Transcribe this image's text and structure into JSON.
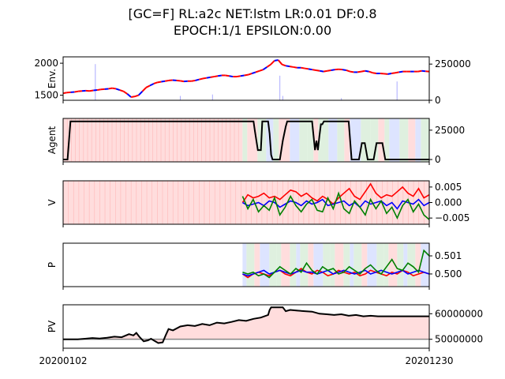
{
  "title_line1": "[GC=F] RL:a2c NET:lstm LR:0.01 DF:0.8",
  "title_line2": "EPOCH:1/1 EPSILON:0.00",
  "colors": {
    "buy": "#ff0000",
    "sell": "#0000ff",
    "hold": "#008000",
    "pv": "#000000",
    "bg_buy": "#ffdddd",
    "bg_sell": "#dde4ff",
    "bg_hold": "#dff0df",
    "baseline": "#888888"
  },
  "x_tick_labels": [
    "20200102",
    "20201230"
  ],
  "chart_data": [
    {
      "type": "line",
      "name_panel": "env",
      "ylabel": "Env.",
      "y_ticks_left": [
        "2000",
        "1500"
      ],
      "y_ticks_right": [
        "250000",
        "0"
      ],
      "ylim": [
        1420,
        2100
      ],
      "ylim_right": [
        0,
        300000
      ],
      "x_range": [
        0,
        250
      ],
      "price": [
        1530,
        1540,
        1545,
        1550,
        1560,
        1565,
        1570,
        1565,
        1575,
        1580,
        1590,
        1595,
        1600,
        1610,
        1600,
        1580,
        1560,
        1520,
        1470,
        1480,
        1500,
        1560,
        1620,
        1650,
        1680,
        1700,
        1710,
        1720,
        1730,
        1735,
        1730,
        1725,
        1715,
        1720,
        1720,
        1730,
        1745,
        1760,
        1770,
        1780,
        1790,
        1800,
        1810,
        1810,
        1800,
        1790,
        1790,
        1800,
        1810,
        1820,
        1840,
        1860,
        1880,
        1900,
        1940,
        1980,
        2040,
        2050,
        1980,
        1960,
        1950,
        1940,
        1930,
        1930,
        1920,
        1910,
        1900,
        1890,
        1880,
        1870,
        1880,
        1890,
        1900,
        1905,
        1900,
        1890,
        1870,
        1860,
        1860,
        1870,
        1880,
        1870,
        1850,
        1840,
        1840,
        1835,
        1830,
        1840,
        1850,
        1860,
        1870,
        1870,
        1870,
        1870,
        1870,
        1880,
        1875,
        1870
      ],
      "volume_spikes": [
        [
          22,
          250000
        ],
        [
          80,
          30000
        ],
        [
          102,
          40000
        ],
        [
          148,
          170000
        ],
        [
          150,
          30000
        ],
        [
          190,
          15000
        ],
        [
          228,
          130000
        ]
      ]
    },
    {
      "type": "line",
      "name_panel": "agent",
      "ylabel": "Agent",
      "y_ticks": [
        "25000",
        "0"
      ],
      "ylim": [
        -2000,
        35000
      ],
      "x": [
        0,
        3,
        5,
        130,
        131,
        133,
        135,
        136,
        138,
        140,
        141,
        142,
        143,
        144,
        145,
        146,
        148,
        150,
        152,
        153,
        156,
        158,
        170,
        172,
        173,
        174,
        175,
        176,
        177,
        178,
        180,
        182,
        195,
        197,
        200,
        202,
        204,
        206,
        208,
        210,
        212,
        214,
        218,
        220,
        250
      ],
      "values": [
        0,
        0,
        32500,
        32500,
        24000,
        8000,
        8000,
        32500,
        32500,
        32500,
        22000,
        4000,
        0,
        0,
        0,
        0,
        0,
        16000,
        28000,
        32500,
        32500,
        32500,
        32500,
        8000,
        16000,
        8000,
        20000,
        30000,
        30000,
        32500,
        32500,
        32500,
        32500,
        0,
        0,
        0,
        14000,
        14000,
        0,
        0,
        0,
        14000,
        14000,
        0,
        0
      ]
    },
    {
      "type": "line",
      "name_panel": "value",
      "ylabel": "V",
      "y_ticks": [
        "0.005",
        "0.000",
        "−0.005"
      ],
      "ylim": [
        -0.007,
        0.007
      ],
      "series": [
        {
          "key": "buy",
          "values": [
            0.0,
            0.0025,
            0.0015,
            0.002,
            0.003,
            0.0015,
            0.002,
            0.001,
            0.0025,
            0.004,
            0.0035,
            0.002,
            0.003,
            0.0015,
            0.0005,
            0.002,
            0.001,
            -0.0005,
            0.0015,
            0.003,
            0.0045,
            0.002,
            0.001,
            0.0035,
            0.006,
            0.003,
            0.0015,
            0.0025,
            0.002,
            0.0035,
            0.005,
            0.003,
            0.002,
            0.0045,
            0.0015,
            0.0025
          ]
        },
        {
          "key": "sell",
          "values": [
            0.0,
            -0.001,
            -0.0005,
            0.0,
            -0.001,
            0.0005,
            0.0,
            -0.0015,
            -0.0005,
            0.0005,
            0.0,
            -0.001,
            0.0005,
            -0.0005,
            0.0,
            0.001,
            -0.001,
            -0.0005,
            0.0,
            0.0005,
            -0.001,
            0.0,
            -0.0015,
            0.0005,
            -0.0005,
            0.0,
            0.0005,
            -0.001,
            0.0,
            -0.002,
            0.0005,
            0.0,
            -0.0005,
            0.001,
            -0.001,
            0.0
          ]
        },
        {
          "key": "hold",
          "values": [
            0.002,
            -0.002,
            0.001,
            -0.003,
            -0.001,
            -0.0025,
            0.0015,
            -0.004,
            -0.0015,
            0.002,
            -0.001,
            -0.003,
            -0.0005,
            0.001,
            -0.0025,
            -0.003,
            0.0015,
            -0.002,
            0.003,
            -0.002,
            -0.0035,
            0.0005,
            -0.0015,
            -0.004,
            0.001,
            -0.002,
            0.0005,
            -0.0035,
            -0.0015,
            -0.005,
            -0.001,
            0.001,
            -0.003,
            -0.0005,
            -0.004,
            -0.0055
          ]
        }
      ]
    },
    {
      "type": "line",
      "name_panel": "policy",
      "ylabel": "P",
      "y_ticks": [
        "0.501",
        "0.500"
      ],
      "ylim": [
        0.4993,
        0.5017
      ],
      "series": [
        {
          "key": "buy",
          "values": [
            0.5,
            0.4998,
            0.5,
            0.5001,
            0.5,
            0.4999,
            0.5001,
            0.5002,
            0.5,
            0.4999,
            0.5001,
            0.5003,
            0.5001,
            0.5,
            0.5002,
            0.5001,
            0.4999,
            0.5,
            0.5002,
            0.5001,
            0.5,
            0.5001,
            0.4999,
            0.5,
            0.5002,
            0.5001,
            0.5,
            0.4999,
            0.5001,
            0.5,
            0.5002,
            0.5001,
            0.4999,
            0.5,
            0.5001,
            0.5
          ]
        },
        {
          "key": "sell",
          "values": [
            0.5,
            0.4999,
            0.5,
            0.5001,
            0.5002,
            0.5,
            0.5001,
            0.5002,
            0.5001,
            0.5,
            0.5001,
            0.5002,
            0.5001,
            0.5001,
            0.5,
            0.5001,
            0.5002,
            0.5,
            0.5001,
            0.5002,
            0.5001,
            0.5,
            0.5001,
            0.5002,
            0.5,
            0.5001,
            0.5002,
            0.5001,
            0.5,
            0.5001,
            0.5002,
            0.5,
            0.5001,
            0.5002,
            0.5001,
            0.5
          ]
        },
        {
          "key": "hold",
          "values": [
            0.5001,
            0.5,
            0.5001,
            0.4999,
            0.5,
            0.4998,
            0.5001,
            0.5004,
            0.5002,
            0.5,
            0.5003,
            0.5001,
            0.5006,
            0.5002,
            0.5,
            0.5004,
            0.5002,
            0.5003,
            0.5,
            0.5001,
            0.5004,
            0.5002,
            0.5,
            0.5003,
            0.5005,
            0.5002,
            0.5,
            0.5004,
            0.5008,
            0.5003,
            0.5002,
            0.5006,
            0.5004,
            0.5001,
            0.5013,
            0.501
          ]
        }
      ]
    },
    {
      "type": "area",
      "name_panel": "pv",
      "ylabel": "PV",
      "y_ticks": [
        "60000000",
        "50000000"
      ],
      "ylim": [
        46500000,
        63500000
      ],
      "baseline_value": 50000000,
      "x": [
        0,
        10,
        15,
        20,
        25,
        30,
        35,
        40,
        45,
        48,
        50,
        52,
        55,
        58,
        60,
        62,
        65,
        68,
        70,
        72,
        75,
        80,
        85,
        90,
        95,
        100,
        105,
        110,
        115,
        120,
        125,
        130,
        135,
        140,
        141,
        142,
        145,
        150,
        152,
        155,
        160,
        165,
        170,
        175,
        180,
        185,
        190,
        195,
        200,
        205,
        210,
        215,
        220,
        225,
        230,
        240,
        250
      ],
      "values": [
        50000000,
        50000000,
        50200000,
        50500000,
        50300000,
        50600000,
        51000000,
        50800000,
        52000000,
        51500000,
        52500000,
        51000000,
        49200000,
        49600000,
        50200000,
        49500000,
        48500000,
        48800000,
        51500000,
        54000000,
        53500000,
        55000000,
        55500000,
        55200000,
        56000000,
        55500000,
        56500000,
        56200000,
        56800000,
        57500000,
        57200000,
        58000000,
        58500000,
        59500000,
        61500000,
        62500000,
        62500000,
        62500000,
        61000000,
        61500000,
        61200000,
        61000000,
        60800000,
        60000000,
        59800000,
        59500000,
        59800000,
        59200000,
        59500000,
        59000000,
        59200000,
        59000000,
        59000000,
        59000000,
        59000000,
        59000000,
        59000000
      ]
    }
  ]
}
